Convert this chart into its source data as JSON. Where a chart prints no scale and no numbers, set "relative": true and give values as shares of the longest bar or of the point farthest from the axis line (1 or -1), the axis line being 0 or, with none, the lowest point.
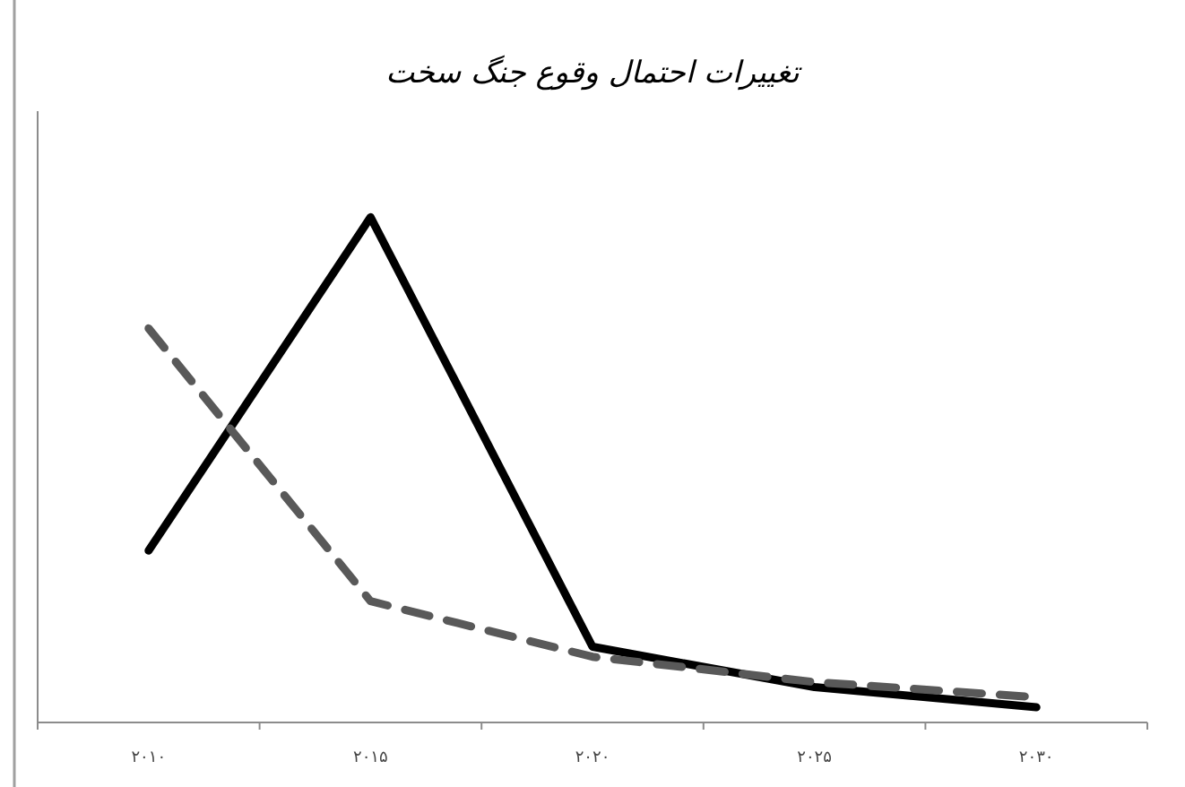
{
  "chart_data": {
    "type": "line",
    "title": "تغییرات احتمال وقوع جنگ سخت",
    "relative": true,
    "categories": [
      "۲۰۱۰",
      "۲۰۱۵",
      "۲۰۲۰",
      "۲۰۲۵",
      "۲۰۳۰"
    ],
    "series": [
      {
        "color": "#000000",
        "line_style": "solid",
        "values": [
          0.34,
          1,
          0.15,
          0.07,
          0.03
        ]
      },
      {
        "color": "#595959",
        "line_style": "dashed",
        "values": [
          0.78,
          0.24,
          0.13,
          0.08,
          0.05
        ]
      }
    ]
  }
}
